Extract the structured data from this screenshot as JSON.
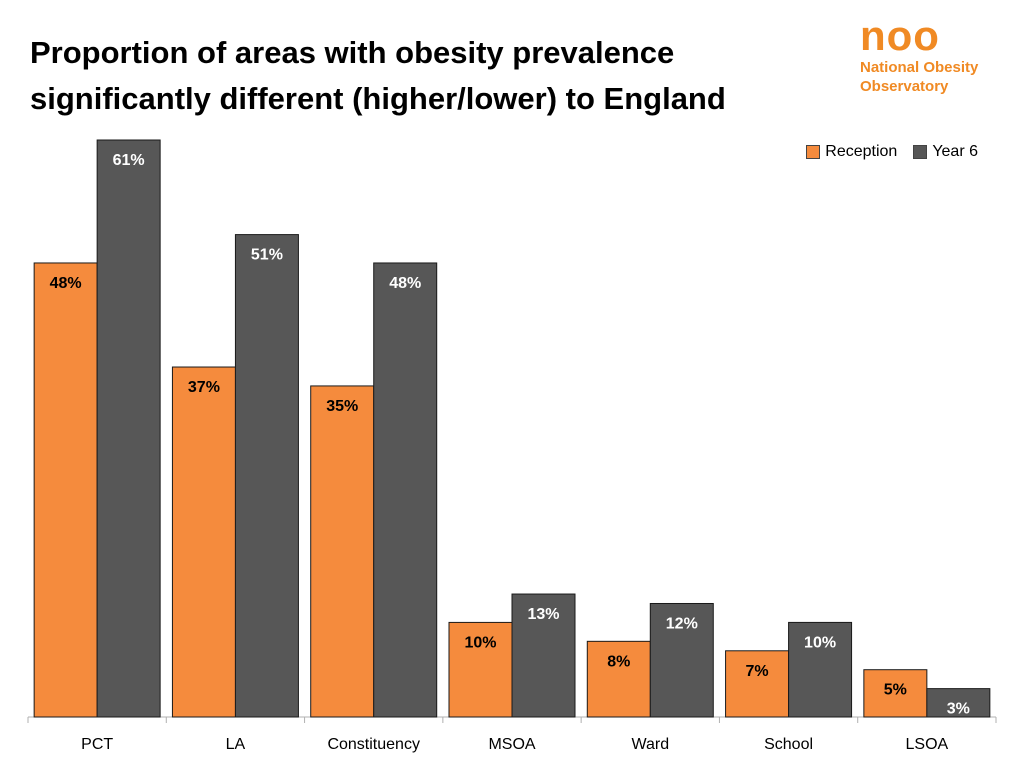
{
  "title": "Proportion of areas with obesity prevalence significantly different (higher/lower) to England",
  "logo": {
    "mark": "noo",
    "line1": "National Obesity",
    "line2": "Observatory"
  },
  "colors": {
    "reception": "#f58b3d",
    "year6": "#575757",
    "axis": "#b0b0b0",
    "text": "#000000",
    "label_on_dark": "#ffffff"
  },
  "chart_data": {
    "type": "bar",
    "categories": [
      "PCT",
      "LA",
      "Constituency",
      "MSOA",
      "Ward",
      "School",
      "LSOA"
    ],
    "series": [
      {
        "name": "Reception",
        "values": [
          48,
          37,
          35,
          10,
          8,
          7,
          5
        ],
        "labels": [
          "48%",
          "37%",
          "35%",
          "10%",
          "8%",
          "7%",
          "5%"
        ]
      },
      {
        "name": "Year 6",
        "values": [
          61,
          51,
          48,
          13,
          12,
          10,
          3
        ],
        "labels": [
          "61%",
          "51%",
          "48%",
          "13%",
          "12%",
          "10%",
          "3%"
        ]
      }
    ],
    "title": "Proportion of areas with obesity prevalence significantly different (higher/lower) to England",
    "xlabel": "",
    "ylabel": "",
    "ylim": [
      0,
      61
    ],
    "grid": false,
    "legend": "top-right",
    "data_labels": true
  }
}
